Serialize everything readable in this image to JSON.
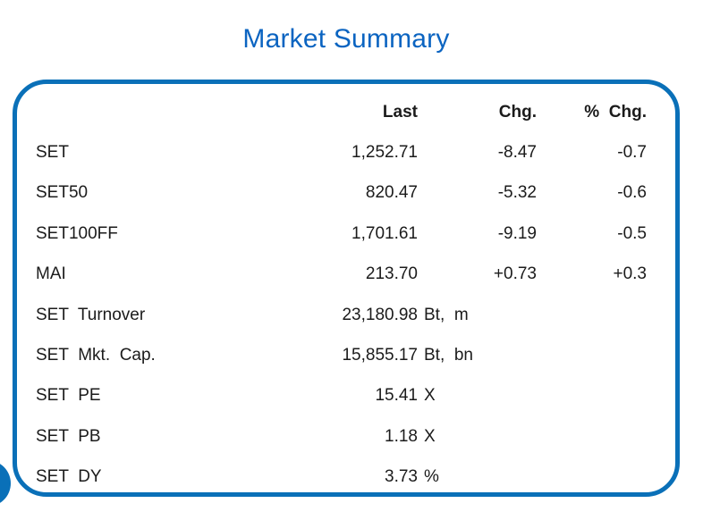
{
  "title": "Market Summary",
  "colors": {
    "title_blue": "#0b64c1",
    "border_blue": "#0a70b8",
    "text": "#1b1b1b"
  },
  "table": {
    "headers": {
      "last": "Last",
      "chg": "Chg.",
      "pct": "% Chg."
    },
    "rows": [
      {
        "label": "SET",
        "last": "1,252.71",
        "unit": "",
        "chg": "-8.47",
        "pct": "-0.7"
      },
      {
        "label": "SET50",
        "last": "820.47",
        "unit": "",
        "chg": "-5.32",
        "pct": "-0.6"
      },
      {
        "label": "SET100FF",
        "last": "1,701.61",
        "unit": "",
        "chg": "-9.19",
        "pct": "-0.5"
      },
      {
        "label": "MAI",
        "last": "213.70",
        "unit": "",
        "chg": "+0.73",
        "pct": "+0.3"
      },
      {
        "label": "SET Turnover",
        "last": "23,180.98",
        "unit": "Bt, m",
        "chg": "",
        "pct": ""
      },
      {
        "label": "SET Mkt. Cap.",
        "last": "15,855.17",
        "unit": "Bt, bn",
        "chg": "",
        "pct": ""
      },
      {
        "label": "SET PE",
        "last": "15.41",
        "unit": "X",
        "chg": "",
        "pct": ""
      },
      {
        "label": "SET PB",
        "last": "1.18",
        "unit": "X",
        "chg": "",
        "pct": ""
      },
      {
        "label": "SET DY",
        "last": "3.73",
        "unit": "%",
        "chg": "",
        "pct": ""
      }
    ]
  }
}
